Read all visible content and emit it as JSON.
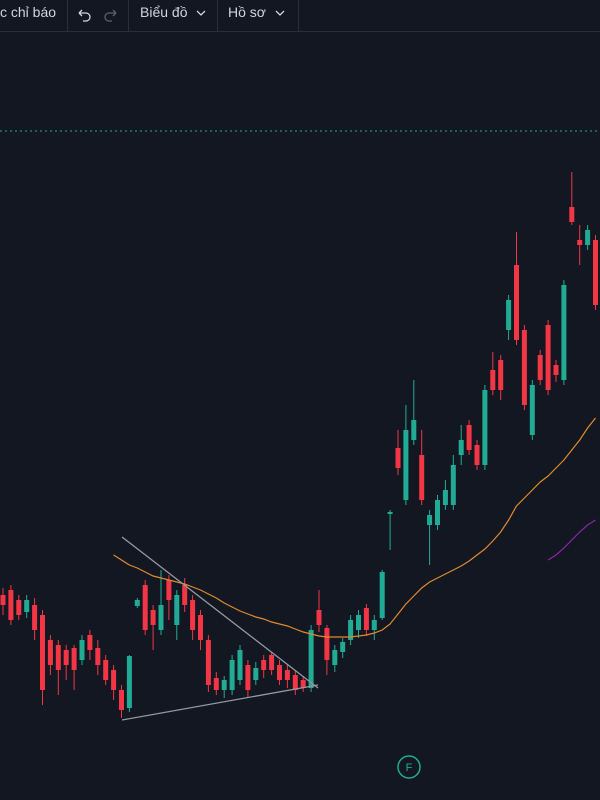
{
  "toolbar": {
    "indicators": "c chỉ báo",
    "chart": "Biểu đồ",
    "profile": "Hồ sơ"
  },
  "event_marker": "F",
  "chart_data": {
    "type": "candlestick",
    "ylim": [
      0,
      800
    ],
    "up_color": "#22ab94",
    "down_color": "#f23645",
    "open": [
      205,
      210,
      200,
      188,
      195,
      185,
      160,
      155,
      150,
      152,
      140,
      165,
      152,
      140,
      130,
      110,
      92,
      194,
      215,
      190,
      170,
      220,
      175,
      215,
      200,
      185,
      160,
      122,
      110,
      110,
      120,
      135,
      120,
      140,
      145,
      135,
      130,
      125,
      120,
      112,
      190,
      172,
      135,
      148,
      160,
      170,
      192,
      170,
      182,
      286,
      352,
      300,
      360,
      345,
      275,
      275,
      295,
      295,
      345,
      375,
      355,
      335,
      430,
      440,
      470,
      535,
      470,
      365,
      445,
      475,
      435,
      420,
      593,
      560,
      555,
      560
    ],
    "high": [
      212,
      215,
      205,
      205,
      202,
      190,
      165,
      160,
      155,
      155,
      165,
      170,
      160,
      145,
      135,
      115,
      145,
      202,
      220,
      195,
      230,
      225,
      210,
      222,
      205,
      190,
      165,
      128,
      124,
      145,
      155,
      140,
      138,
      145,
      148,
      140,
      135,
      130,
      124,
      175,
      210,
      175,
      155,
      162,
      185,
      190,
      196,
      185,
      230,
      290,
      370,
      395,
      420,
      370,
      290,
      305,
      320,
      345,
      375,
      380,
      360,
      415,
      448,
      445,
      505,
      568,
      475,
      420,
      450,
      480,
      440,
      520,
      628,
      575,
      575,
      565
    ],
    "low": [
      185,
      175,
      180,
      182,
      160,
      95,
      125,
      105,
      120,
      110,
      135,
      140,
      125,
      115,
      100,
      82,
      88,
      192,
      165,
      150,
      165,
      180,
      160,
      188,
      160,
      150,
      108,
      105,
      102,
      105,
      115,
      102,
      115,
      122,
      125,
      115,
      112,
      105,
      108,
      108,
      168,
      125,
      128,
      142,
      155,
      162,
      164,
      160,
      180,
      250,
      325,
      295,
      355,
      295,
      235,
      270,
      290,
      290,
      335,
      345,
      330,
      330,
      405,
      400,
      460,
      455,
      390,
      360,
      415,
      405,
      418,
      415,
      575,
      535,
      550,
      490
    ],
    "close": [
      195,
      180,
      185,
      200,
      170,
      110,
      135,
      130,
      135,
      130,
      160,
      150,
      135,
      120,
      110,
      90,
      144,
      200,
      170,
      175,
      195,
      200,
      205,
      195,
      170,
      160,
      115,
      110,
      120,
      140,
      150,
      110,
      132,
      130,
      130,
      120,
      120,
      110,
      112,
      170,
      175,
      140,
      150,
      158,
      180,
      185,
      170,
      180,
      228,
      288,
      332,
      370,
      380,
      300,
      285,
      300,
      310,
      335,
      360,
      350,
      335,
      410,
      410,
      410,
      500,
      460,
      395,
      415,
      420,
      410,
      425,
      515,
      578,
      555,
      570,
      495
    ],
    "lines": [
      {
        "color": "#e08a2c",
        "values": [
          null,
          null,
          null,
          null,
          null,
          null,
          null,
          null,
          null,
          null,
          null,
          null,
          null,
          null,
          245,
          240,
          235,
          232,
          228,
          224,
          222,
          220,
          218,
          216,
          213,
          210,
          206,
          202,
          197,
          193,
          189,
          186,
          183,
          181,
          178,
          176,
          174,
          171,
          168,
          166,
          164,
          163,
          163,
          163,
          163,
          164,
          165,
          167,
          170,
          176,
          186,
          196,
          204,
          212,
          218,
          222,
          226,
          230,
          234,
          239,
          245,
          251,
          259,
          268,
          280,
          294,
          302,
          310,
          318,
          324,
          332,
          340,
          350,
          360,
          372,
          382
        ]
      },
      {
        "color": "#8e24aa",
        "values": [
          null,
          null,
          null,
          null,
          null,
          null,
          null,
          null,
          null,
          null,
          null,
          null,
          null,
          null,
          null,
          null,
          null,
          null,
          null,
          null,
          null,
          null,
          null,
          null,
          null,
          null,
          null,
          null,
          null,
          null,
          null,
          null,
          null,
          null,
          null,
          null,
          null,
          null,
          null,
          null,
          null,
          null,
          null,
          null,
          null,
          null,
          null,
          null,
          null,
          null,
          null,
          null,
          null,
          null,
          null,
          null,
          null,
          null,
          null,
          null,
          null,
          null,
          null,
          null,
          null,
          null,
          null,
          null,
          null,
          240,
          245,
          252,
          260,
          268,
          275,
          280
        ]
      }
    ]
  }
}
